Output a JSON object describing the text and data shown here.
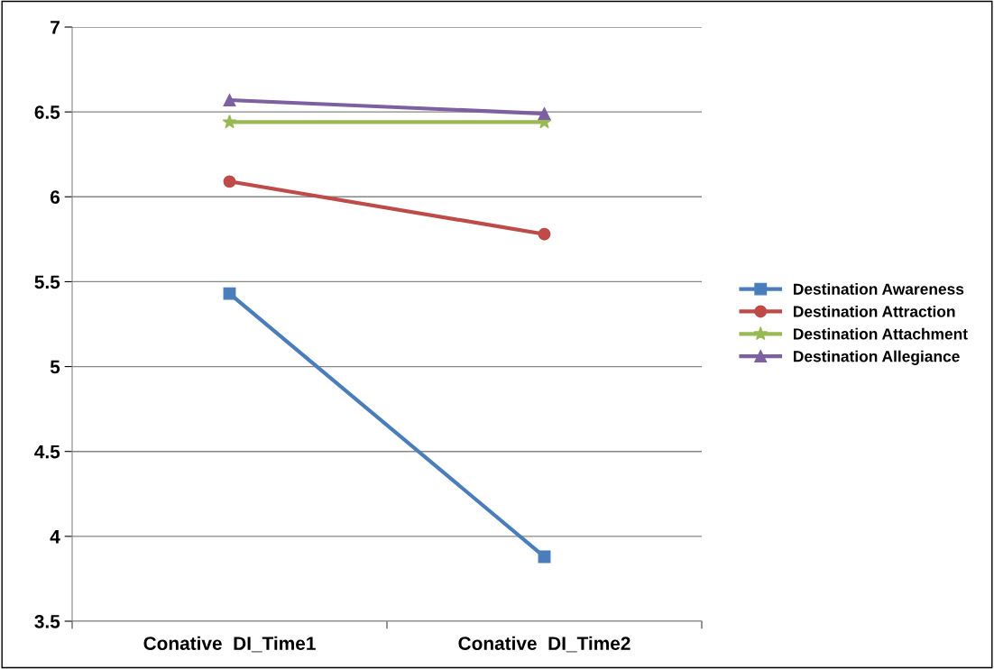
{
  "chart_data": {
    "type": "line",
    "categories": [
      "Conative  DI_Time1",
      "Conative  DI_Time2"
    ],
    "series": [
      {
        "name": "Destination Awareness",
        "color": "#4a7ebb",
        "marker": "square",
        "values": [
          5.43,
          3.88
        ]
      },
      {
        "name": "Destination Attraction",
        "color": "#be4b48",
        "marker": "circle",
        "values": [
          6.09,
          5.78
        ]
      },
      {
        "name": "Destination Attachment",
        "color": "#98b954",
        "marker": "star",
        "values": [
          6.44,
          6.44
        ]
      },
      {
        "name": "Destination Allegiance",
        "color": "#7d60a0",
        "marker": "triangle",
        "values": [
          6.57,
          6.49
        ]
      }
    ],
    "ylim": [
      3.5,
      7
    ],
    "yticks": [
      3.5,
      4,
      4.5,
      5,
      5.5,
      6,
      6.5,
      7
    ],
    "grid": "y",
    "legend": "right",
    "line_style": "solid"
  }
}
